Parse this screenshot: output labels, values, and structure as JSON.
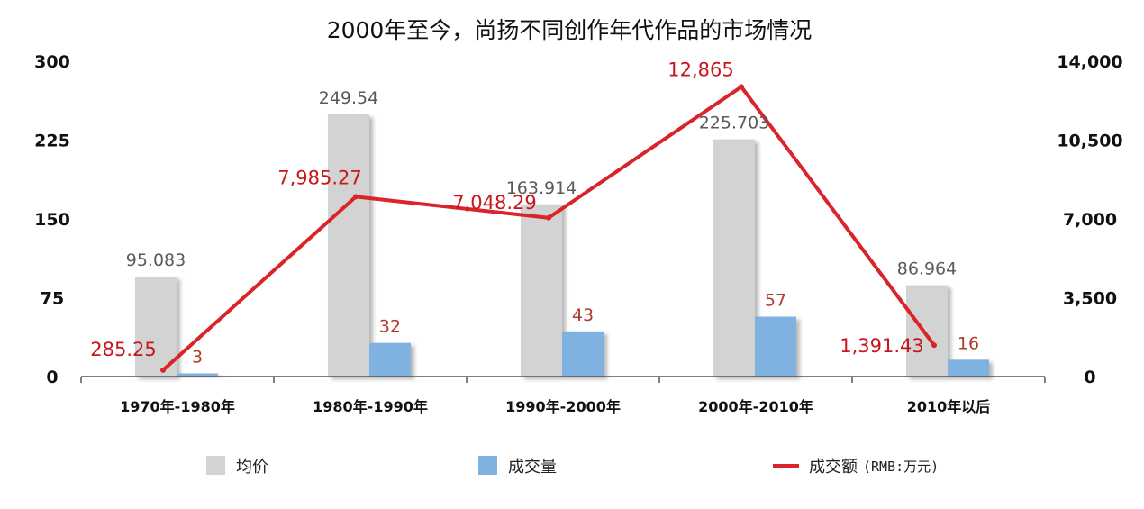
{
  "chart_data": {
    "type": "bar",
    "title": "2000年至今，尚扬不同创作年代作品的市场情况",
    "categories": [
      "1970年-1980年",
      "1980年-1990年",
      "1990年-2000年",
      "2000年-2010年",
      "2010年以后"
    ],
    "series": [
      {
        "name": "均价",
        "type": "bar",
        "axis": "left",
        "color": "#d3d3d3",
        "values": [
          95.083,
          249.54,
          163.914,
          225.703,
          86.964
        ],
        "labels": [
          "95.083",
          "249.54",
          "163.914",
          "225.703",
          "86.964"
        ]
      },
      {
        "name": "成交量",
        "type": "bar",
        "axis": "left",
        "color": "#7fb2e0",
        "values": [
          3,
          32,
          43,
          57,
          16
        ],
        "labels": [
          "3",
          "32",
          "43",
          "57",
          "16"
        ]
      },
      {
        "name": "成交额",
        "legend_suffix": "(RMB:万元)",
        "type": "line",
        "axis": "right",
        "color": "#d9242a",
        "values": [
          285.25,
          7985.27,
          7048.29,
          12865,
          1391.43
        ],
        "labels": [
          "285.25",
          "7,985.27",
          "7,048.29",
          "12,865",
          "1,391.43"
        ]
      }
    ],
    "y_left": {
      "range": [
        0,
        300
      ],
      "ticks": [
        0,
        75,
        150,
        225,
        300
      ],
      "tick_labels": [
        "0",
        "75",
        "150",
        "225",
        "300"
      ]
    },
    "y_right": {
      "range": [
        0,
        14000
      ],
      "ticks": [
        0,
        3500,
        7000,
        10500,
        14000
      ],
      "tick_labels": [
        "0",
        "3,500",
        "7,000",
        "10,500",
        "14,000"
      ]
    },
    "legend": {
      "position": "bottom"
    },
    "grid": false
  }
}
